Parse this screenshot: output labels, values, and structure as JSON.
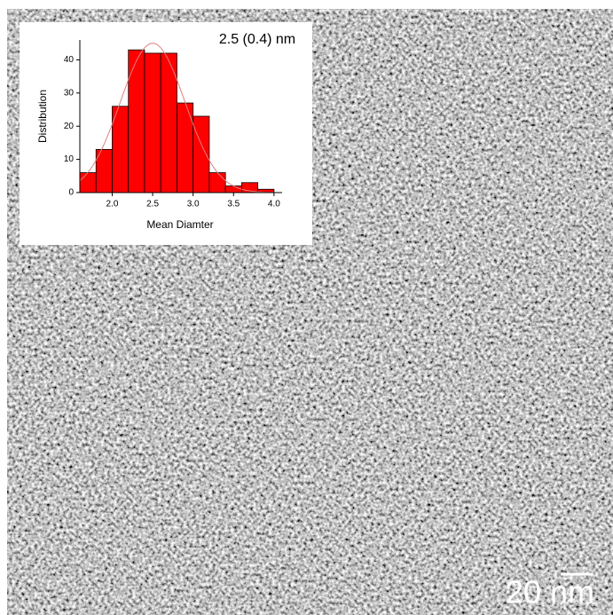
{
  "chart_data": {
    "type": "histogram",
    "bins": [
      1.6,
      1.8,
      2.0,
      2.2,
      2.4,
      2.6,
      2.8,
      3.0,
      3.2,
      3.4,
      3.6,
      3.8,
      4.0
    ],
    "counts": [
      6,
      13,
      26,
      43,
      42,
      42,
      27,
      23,
      6,
      2,
      3,
      1
    ],
    "color": "#ff0000",
    "xlim": [
      1.6,
      4.1
    ],
    "xticks": [
      2.0,
      2.5,
      3.0,
      3.5,
      4.0
    ],
    "ylim": [
      0,
      46
    ],
    "yticks": [
      0,
      10,
      20,
      30,
      40
    ],
    "xlabel": "Mean Diamter",
    "ylabel": "Distribution",
    "annotation": "2.5 (0.4) nm",
    "fit_curve": {
      "center": 2.5,
      "width": 0.4,
      "peak": 45,
      "color": "#e08080"
    }
  },
  "scale_bar": {
    "label": "20 nm"
  }
}
